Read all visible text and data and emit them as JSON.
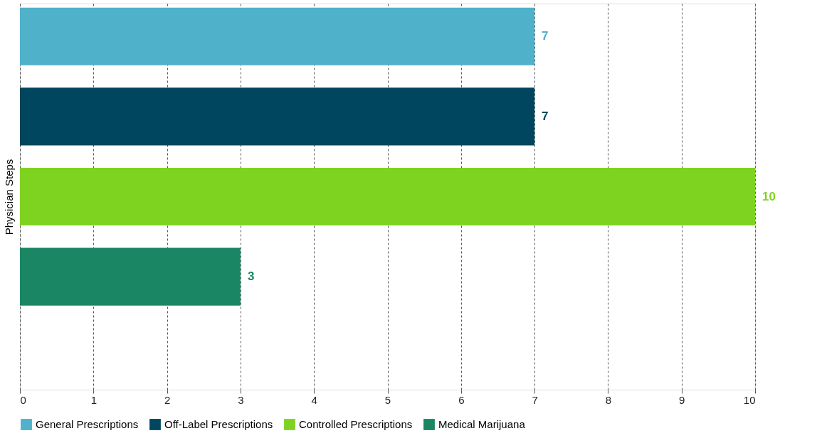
{
  "chart_data": {
    "type": "bar",
    "orientation": "horizontal",
    "ylabel": "Physician Steps",
    "categories": [
      null
    ],
    "series": [
      {
        "name": "General Prescriptions",
        "color": "#4fb1ca",
        "values": [
          7
        ]
      },
      {
        "name": "Off-Label Prescriptions",
        "color": "#00465e",
        "values": [
          7
        ]
      },
      {
        "name": "Controlled Prescriptions",
        "color": "#7ed321",
        "values": [
          10
        ]
      },
      {
        "name": "Medical Marijuana",
        "color": "#1a8664",
        "values": [
          3
        ]
      }
    ],
    "xlim": [
      0,
      10
    ],
    "xticks": [
      0,
      1,
      2,
      3,
      4,
      5,
      6,
      7,
      8,
      9,
      10
    ],
    "grid": "x",
    "legend": "bottom",
    "data_labels": true
  }
}
